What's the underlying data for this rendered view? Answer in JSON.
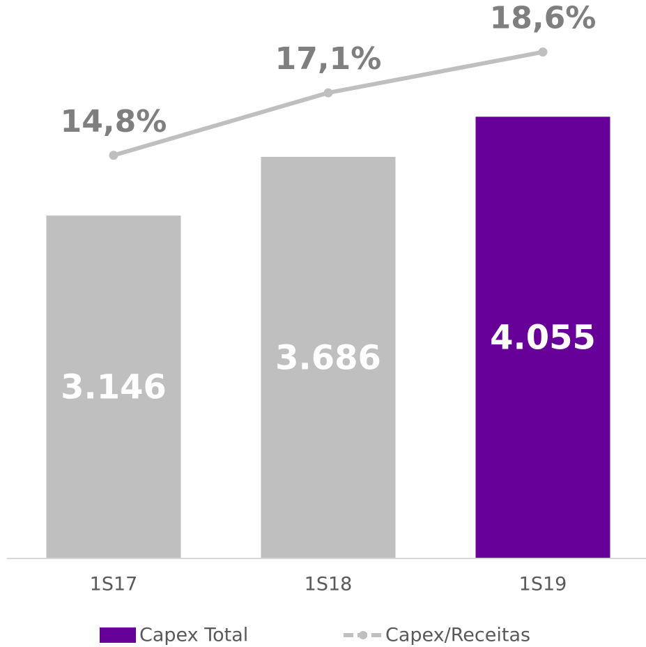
{
  "chart_data": {
    "type": "bar",
    "categories": [
      "1S17",
      "1S18",
      "1S19"
    ],
    "series": [
      {
        "name": "Capex Total",
        "color": "#660099",
        "colors": [
          "#bfbfbf",
          "#bfbfbf",
          "#660099"
        ],
        "values": [
          3146,
          3686,
          4055
        ],
        "value_labels": [
          "3.146",
          "3.686",
          "4.055"
        ]
      },
      {
        "name": "Capex/Receitas",
        "type": "line",
        "axis": "y2",
        "color": "#bfbfbf",
        "values": [
          14.8,
          17.1,
          18.6
        ],
        "value_labels": [
          "14,8%",
          "17,1%",
          "18,6%"
        ]
      }
    ],
    "ylim": [
      0,
      5000
    ],
    "y2lim": [
      0,
      20
    ],
    "legend": "bottom"
  }
}
